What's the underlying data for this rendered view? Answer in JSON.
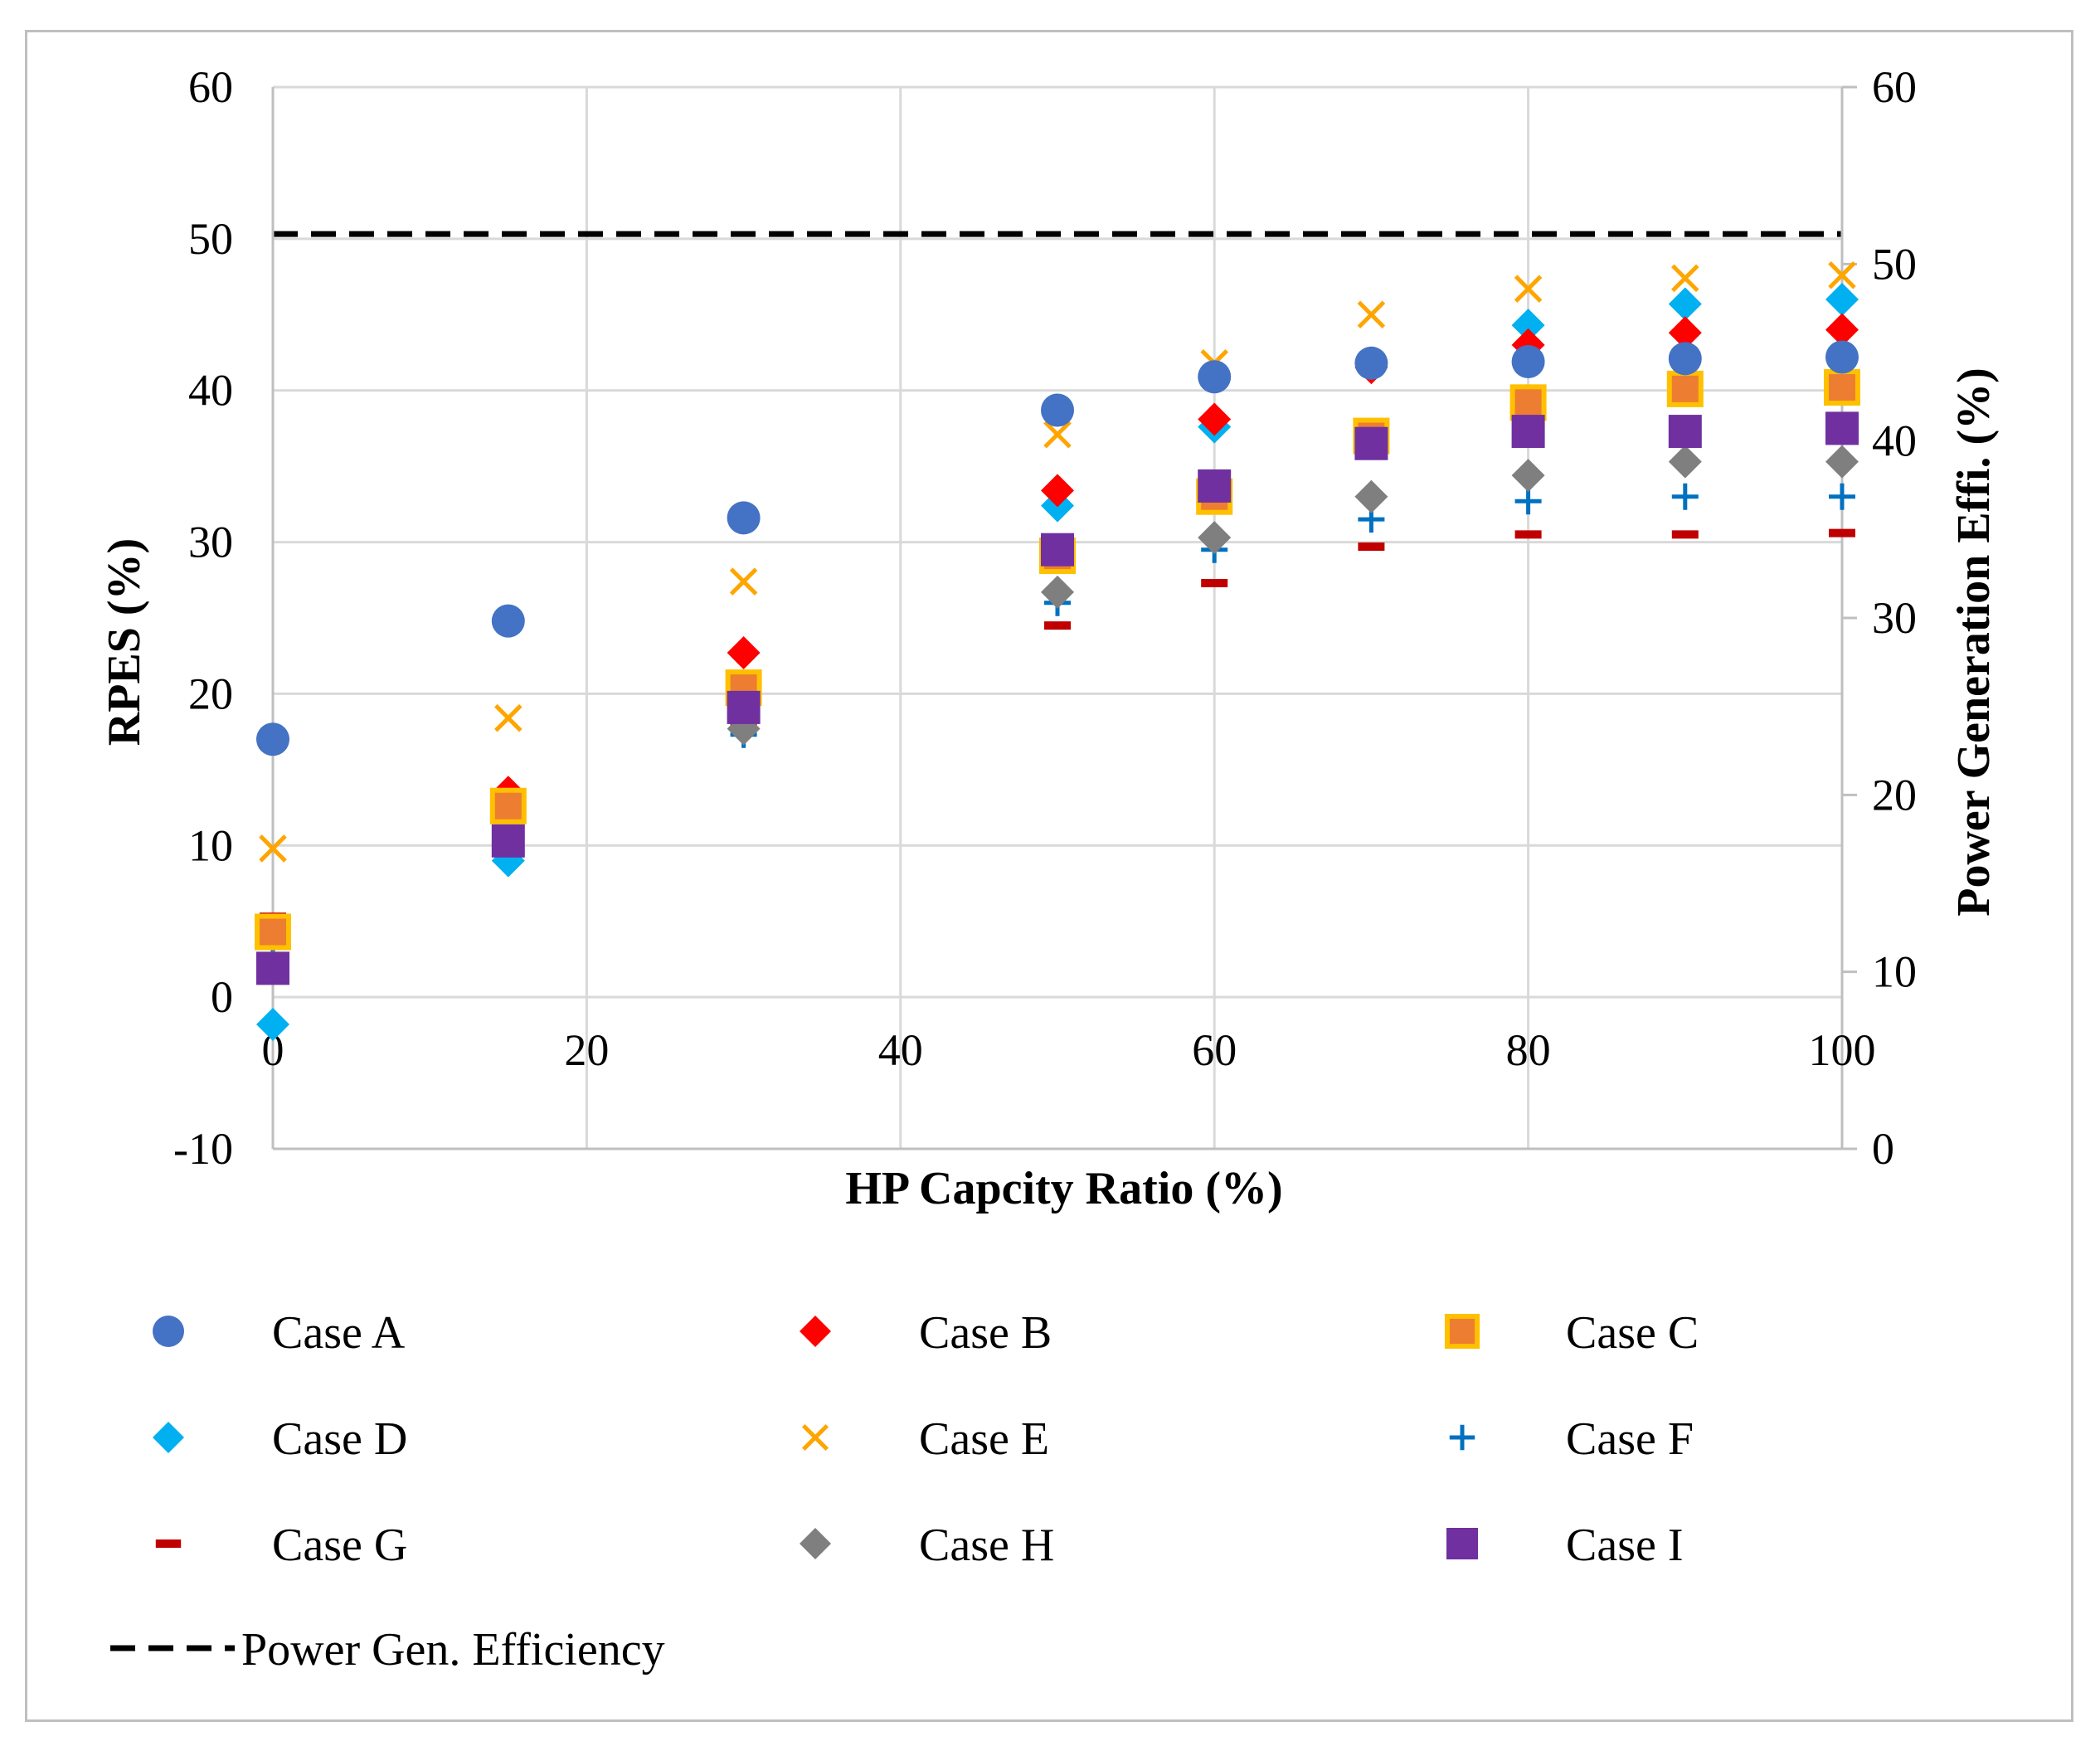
{
  "chart_data": {
    "type": "scatter",
    "xlabel": "HP Capcity Ratio (%)",
    "ylabel": "RPES (%)",
    "y2label": "Power Generation Effi. (%)",
    "xlim": [
      0,
      100
    ],
    "ylim": [
      -10,
      60
    ],
    "y2lim": [
      0,
      60
    ],
    "xticks": [
      "0",
      "20",
      "40",
      "60",
      "80",
      "100"
    ],
    "yticks": [
      "-10",
      "0",
      "10",
      "20",
      "30",
      "40",
      "50",
      "60"
    ],
    "y2ticks": [
      "0",
      "10",
      "20",
      "30",
      "40",
      "50",
      "60"
    ],
    "grid": true,
    "legend_position": "bottom",
    "x": [
      0,
      15,
      30,
      50,
      60,
      70,
      80,
      90,
      100
    ],
    "series": [
      {
        "name": "Case A",
        "marker": "circle",
        "color": "#4472c4",
        "values": [
          17.0,
          24.8,
          31.6,
          38.7,
          40.9,
          41.8,
          41.9,
          42.1,
          42.2
        ]
      },
      {
        "name": "Case B",
        "marker": "diamond",
        "color": "#ff0000",
        "values": [
          4.5,
          13.5,
          22.7,
          33.4,
          38.1,
          41.5,
          43.0,
          43.8,
          44.0
        ]
      },
      {
        "name": "Case C",
        "marker": "square-outline",
        "color": "#ed7d31",
        "stroke": "#ffc000",
        "values": [
          4.3,
          12.6,
          20.4,
          29.1,
          33.0,
          37.0,
          39.2,
          40.1,
          40.2
        ]
      },
      {
        "name": "Case D",
        "marker": "diamond",
        "color": "#00b0f0",
        "values": [
          -1.8,
          9.0,
          19.8,
          32.4,
          37.6,
          41.8,
          44.3,
          45.7,
          46.0
        ]
      },
      {
        "name": "Case E",
        "marker": "x",
        "color": "#ffa500",
        "values": [
          9.8,
          18.4,
          27.4,
          37.1,
          41.8,
          45.0,
          46.7,
          47.4,
          47.6
        ]
      },
      {
        "name": "Case F",
        "marker": "plus",
        "color": "#0070c0",
        "values": [
          2.5,
          9.8,
          17.3,
          26.0,
          29.5,
          31.5,
          32.7,
          33.0,
          33.0
        ]
      },
      {
        "name": "Case G",
        "marker": "dash",
        "color": "#c00000",
        "values": [
          5.3,
          11.8,
          18.0,
          24.5,
          27.3,
          29.7,
          30.5,
          30.5,
          30.6
        ]
      },
      {
        "name": "Case H",
        "marker": "diamond",
        "color": "#7f7f7f",
        "values": [
          2.0,
          9.5,
          17.7,
          26.7,
          30.3,
          33.0,
          34.4,
          35.3,
          35.3
        ]
      },
      {
        "name": "Case I",
        "marker": "square",
        "color": "#7030a0",
        "values": [
          1.9,
          10.3,
          19.1,
          29.5,
          33.7,
          36.5,
          37.3,
          37.3,
          37.5
        ]
      }
    ],
    "reference_line": {
      "name": "Power Gen. Efficiency",
      "axis": "y2",
      "value": 51.7,
      "color": "#000000",
      "style": "dashed"
    }
  }
}
